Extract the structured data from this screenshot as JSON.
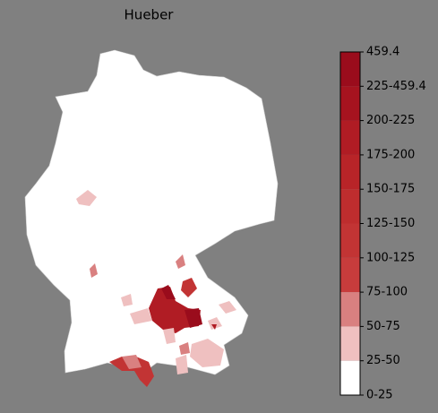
{
  "title": "Hueber",
  "colorbar": {
    "labels": [
      "459.4",
      "225-459.4",
      "200-225",
      "175-200",
      "150-175",
      "125-150",
      "100-125",
      "75-100",
      "50-75",
      "25-50",
      "0-25"
    ],
    "colors": [
      "#9a0c1c",
      "#a6131f",
      "#b01c24",
      "#b82428",
      "#be2d2e",
      "#c23434",
      "#c73c3c",
      "#d98080",
      "#efc0c0",
      "#ffffff"
    ]
  }
}
